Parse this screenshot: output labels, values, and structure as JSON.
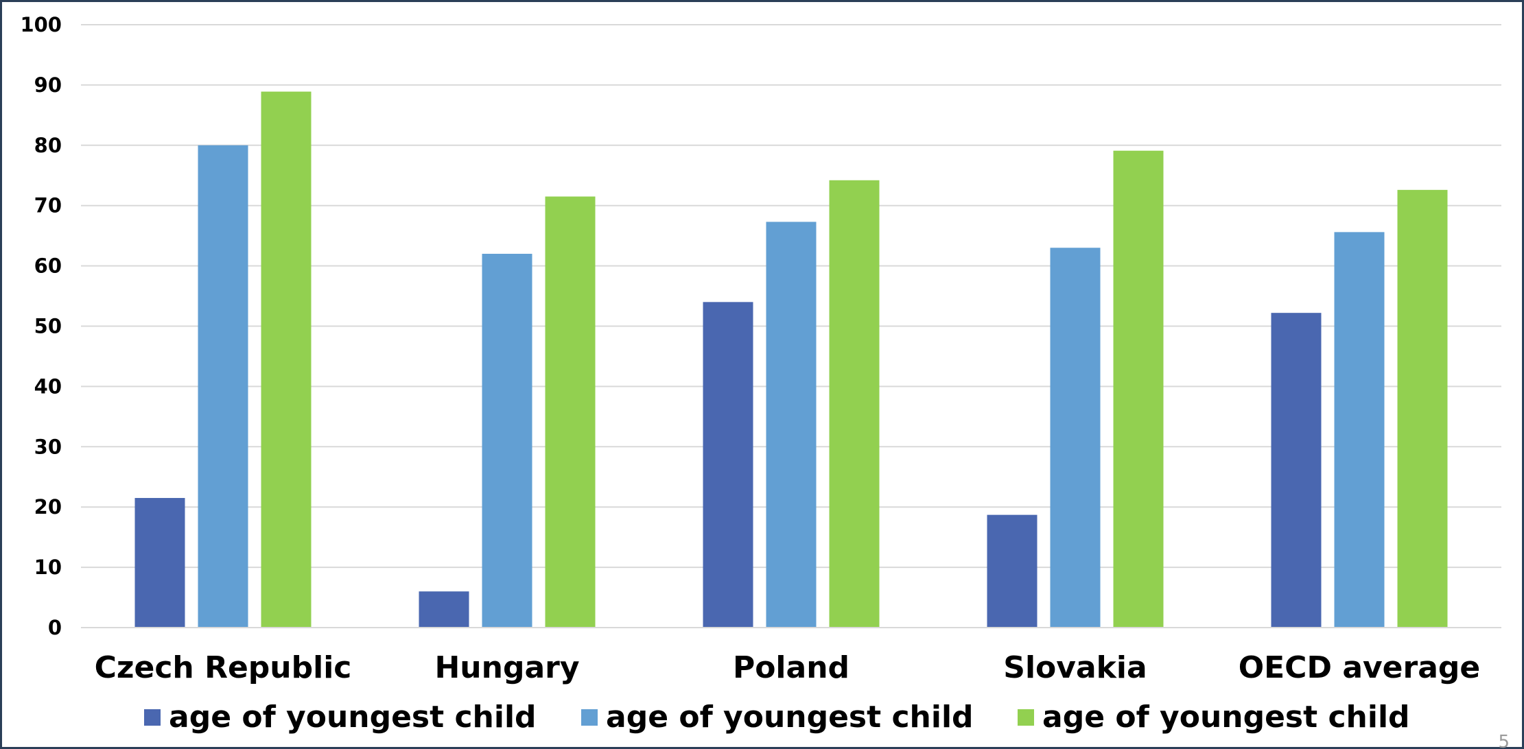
{
  "chart_data": {
    "type": "bar",
    "categories": [
      "Czech Republic",
      "Hungary",
      "Poland",
      "Slovakia",
      "OECD average"
    ],
    "series": [
      {
        "name": "age of youngest child",
        "color": "#4a67b0",
        "values": [
          21.5,
          6,
          54,
          18.7,
          52.2
        ]
      },
      {
        "name": "age of youngest child",
        "color": "#629fd3",
        "values": [
          80,
          62,
          67.3,
          63,
          65.6
        ]
      },
      {
        "name": "age of youngest child",
        "color": "#92d050",
        "values": [
          88.9,
          71.5,
          74.2,
          79.1,
          72.6
        ]
      }
    ],
    "ylim": [
      0,
      100
    ],
    "yticks": [
      0,
      10,
      20,
      30,
      40,
      50,
      60,
      70,
      80,
      90,
      100
    ],
    "grid": true,
    "legend_position": "bottom"
  },
  "page_number": "5"
}
